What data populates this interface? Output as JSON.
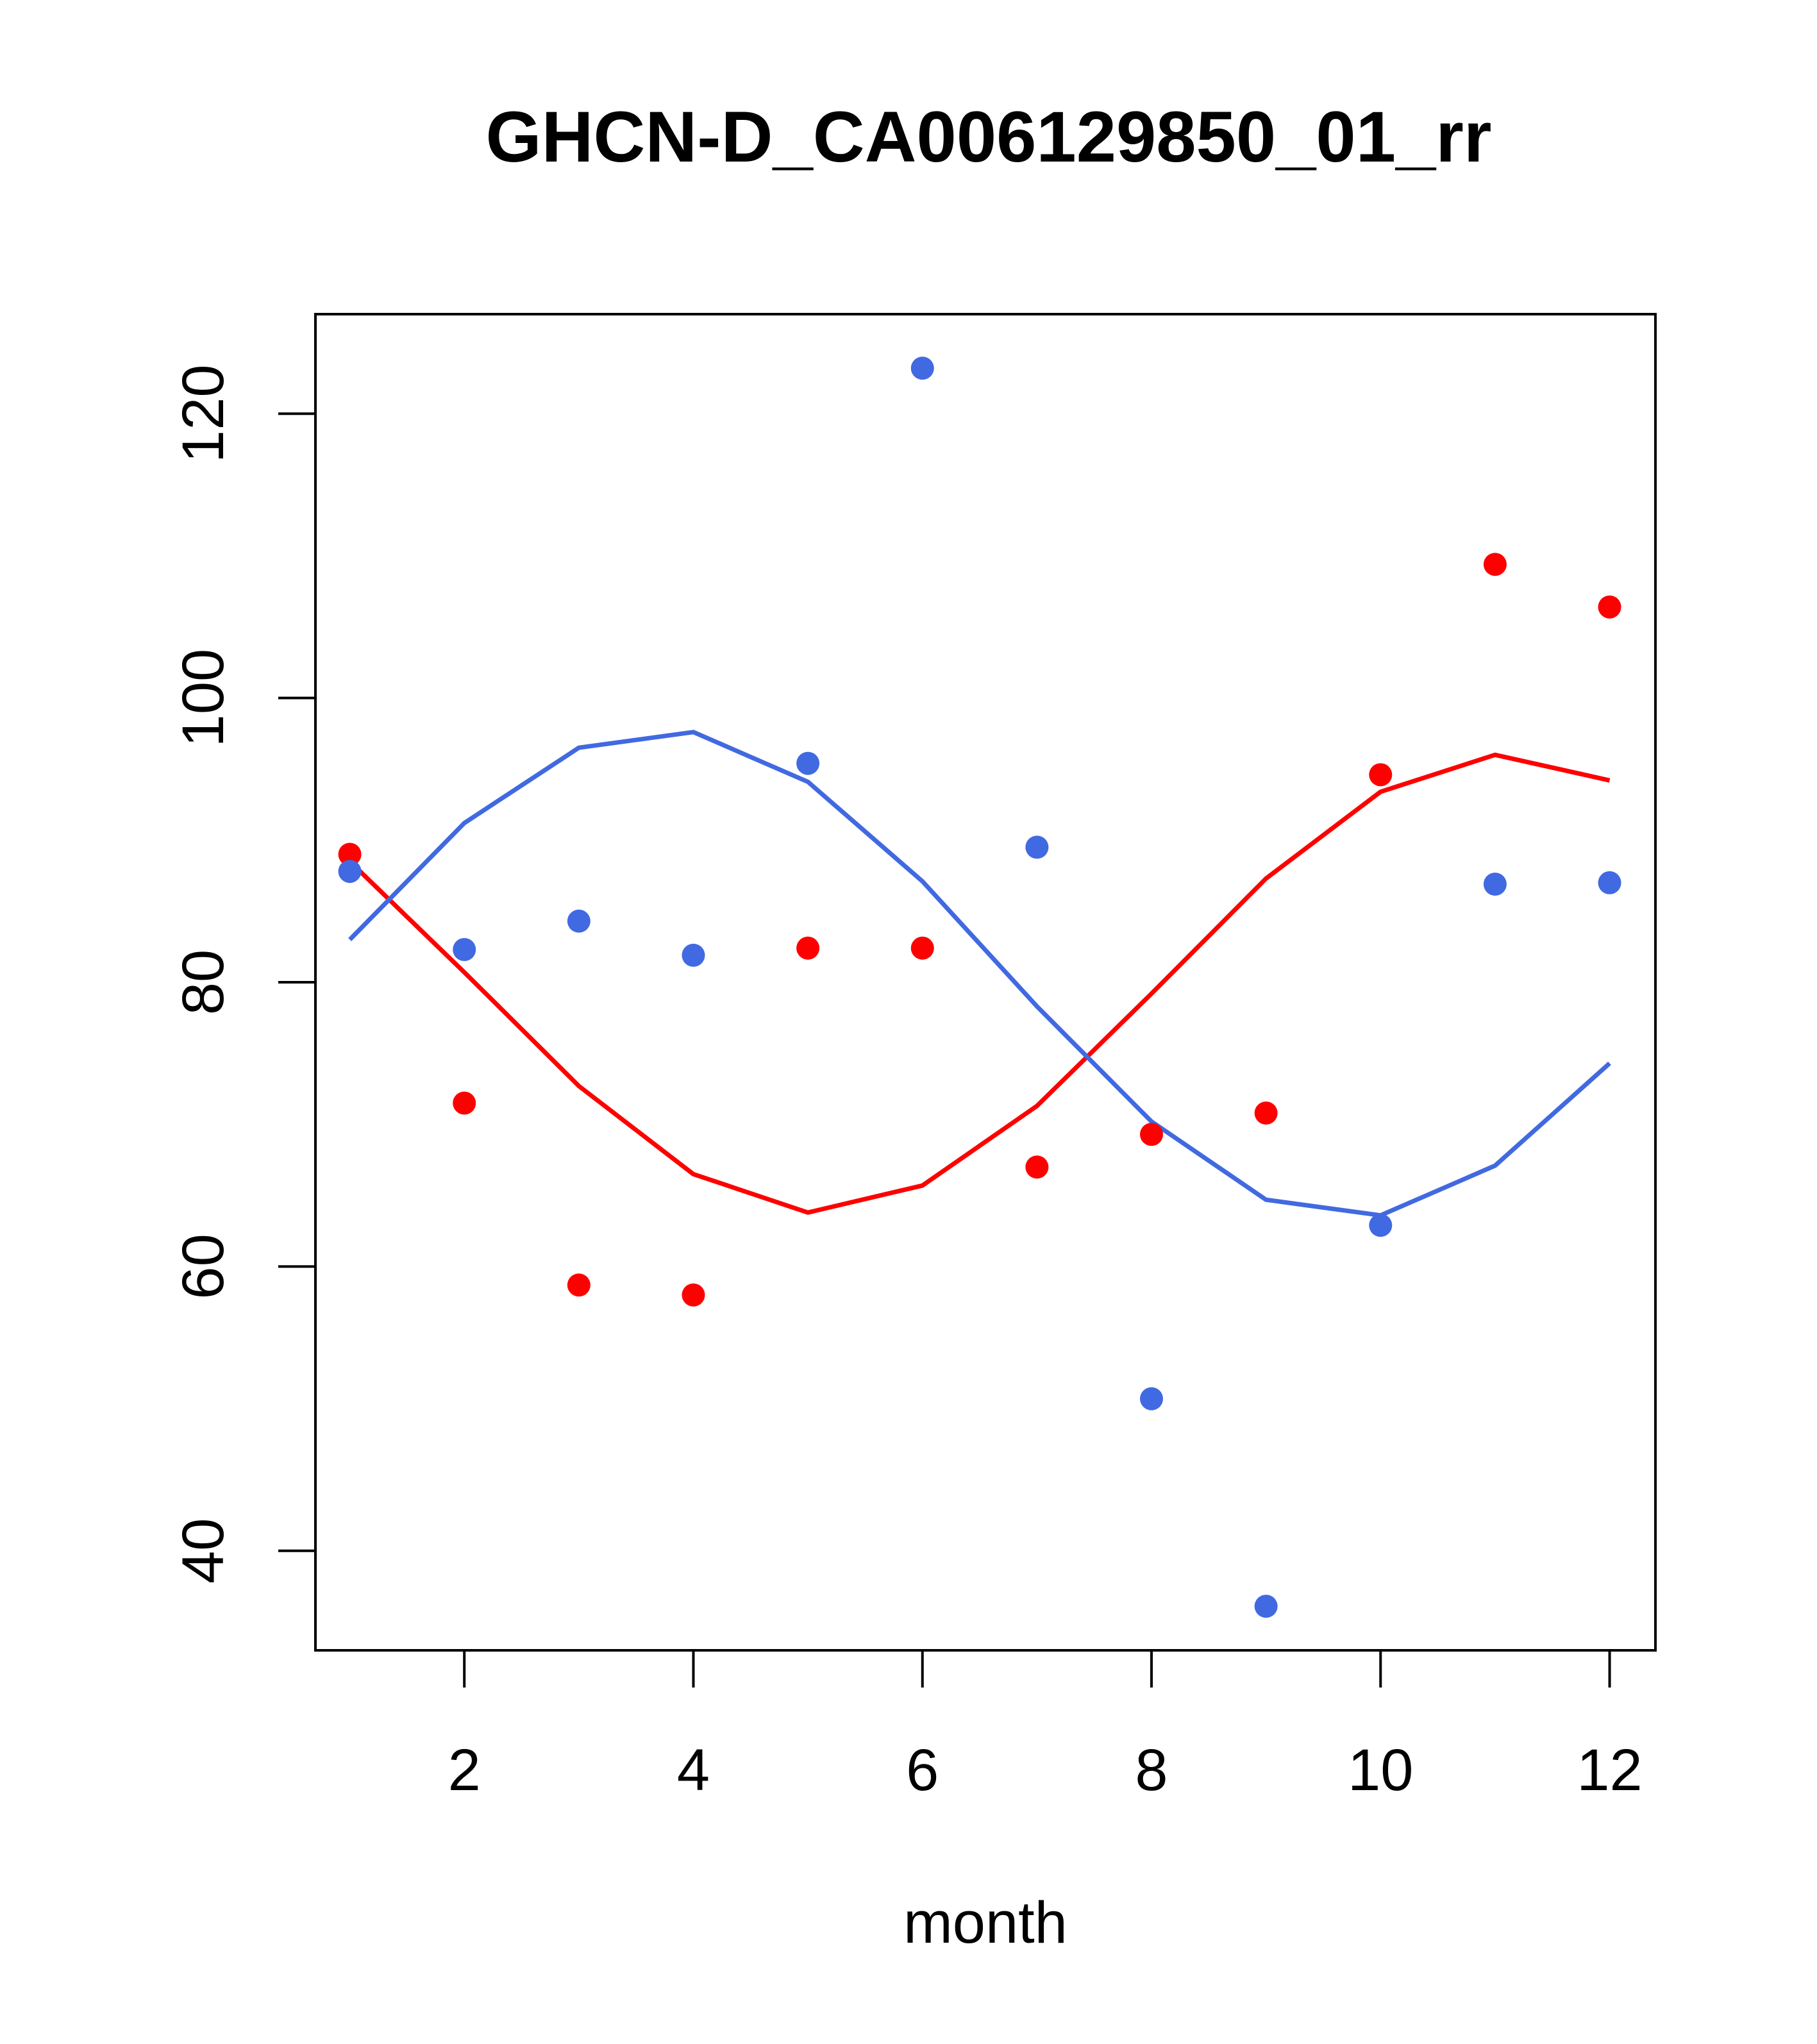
{
  "chart_data": {
    "type": "scatter",
    "title": "GHCN-D_CA006129850_01_rr",
    "xlabel": "month",
    "ylabel": "",
    "xlim": [
      0.7,
      12.4
    ],
    "ylim": [
      33,
      127
    ],
    "x_ticks": [
      2,
      4,
      6,
      8,
      10,
      12
    ],
    "y_ticks": [
      40,
      60,
      80,
      100,
      120
    ],
    "grid": false,
    "legend": "none",
    "x": [
      1,
      2,
      3,
      4,
      5,
      6,
      7,
      8,
      9,
      10,
      11,
      12
    ],
    "series": [
      {
        "color": "#ff0000",
        "points": [
          89.0,
          71.5,
          58.7,
          58.0,
          82.4,
          82.4,
          67.0,
          69.3,
          70.8,
          94.6,
          109.4,
          106.4
        ],
        "line": [
          88.5,
          80.7,
          72.7,
          66.5,
          63.8,
          65.7,
          71.3,
          79.2,
          87.3,
          93.4,
          96.0,
          94.2
        ]
      },
      {
        "color": "#4169e1",
        "points": [
          87.8,
          82.3,
          84.3,
          81.9,
          95.4,
          123.2,
          89.5,
          50.7,
          36.1,
          62.9,
          86.9,
          87.0
        ],
        "line": [
          83.0,
          91.2,
          96.5,
          97.6,
          94.1,
          87.1,
          78.3,
          70.2,
          64.7,
          63.6,
          67.1,
          74.3
        ]
      }
    ]
  }
}
